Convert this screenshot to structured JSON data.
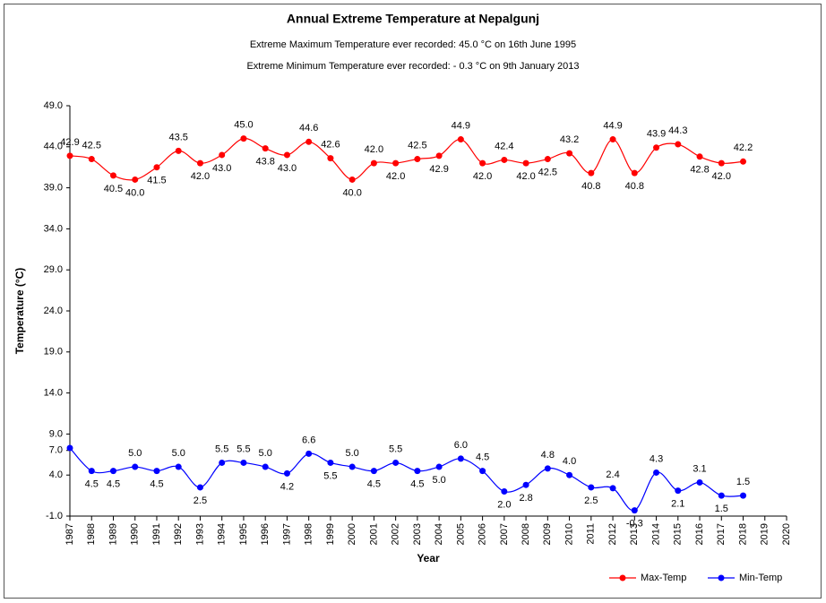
{
  "chart_data": {
    "type": "line",
    "title": "Annual Extreme Temperature at Nepalgunj",
    "subtitles": [
      "Extreme Maximum Temperature  ever recorded: 45.0 °C on 16th June 1995",
      "Extreme Minimum Temperature ever recorded: - 0.3 °C on 9th January 2013"
    ],
    "xlabel": "Year",
    "ylabel": "Temperature (°C)",
    "x": [
      1987,
      1988,
      1989,
      1990,
      1991,
      1992,
      1993,
      1994,
      1995,
      1996,
      1997,
      1998,
      1999,
      2000,
      2001,
      2002,
      2003,
      2004,
      2005,
      2006,
      2007,
      2008,
      2009,
      2010,
      2011,
      2012,
      2013,
      2014,
      2015,
      2016,
      2017,
      2018
    ],
    "xlim": [
      1987,
      2020
    ],
    "xticks": [
      1987,
      1988,
      1989,
      1990,
      1991,
      1992,
      1993,
      1994,
      1995,
      1996,
      1997,
      1998,
      1999,
      2000,
      2001,
      2002,
      2003,
      2004,
      2005,
      2006,
      2007,
      2008,
      2009,
      2010,
      2011,
      2012,
      2013,
      2014,
      2015,
      2016,
      2017,
      2018,
      2019,
      2020
    ],
    "ylim": [
      -1,
      49
    ],
    "yticks": [
      {
        "value": -1,
        "label": "-1.0"
      },
      {
        "value": 4,
        "label": "4.0"
      },
      {
        "value": 7,
        "label": "7.0"
      },
      {
        "value": 9,
        "label": "9.0"
      },
      {
        "value": 14,
        "label": "14.0"
      },
      {
        "value": 19,
        "label": "19.0"
      },
      {
        "value": 24,
        "label": "24.0"
      },
      {
        "value": 29,
        "label": "29.0"
      },
      {
        "value": 34,
        "label": "34.0"
      },
      {
        "value": 39,
        "label": "39.0"
      },
      {
        "value": 44,
        "label": "44.0"
      },
      {
        "value": 49,
        "label": "49.0"
      }
    ],
    "legend": "bottom-right",
    "series": [
      {
        "name": "Max-Temp",
        "color": "#ff0000",
        "values": [
          42.9,
          42.5,
          40.5,
          40.0,
          41.5,
          43.5,
          42.0,
          43.0,
          45.0,
          43.8,
          43.0,
          44.6,
          42.6,
          40.0,
          42.0,
          42.0,
          42.5,
          42.9,
          44.9,
          42.0,
          42.4,
          42.0,
          42.5,
          43.2,
          40.8,
          44.9,
          40.8,
          43.9,
          44.3,
          42.8,
          42.0,
          42.2
        ],
        "value_labels": [
          "42.9",
          "42.5",
          "40.5",
          "40.0",
          "41.5",
          "43.5",
          "42.0",
          "43.0",
          "45.0",
          "43.8",
          "43.0",
          "44.6",
          "42.6",
          "40.0",
          "42.0",
          "42.0",
          "42.5",
          "42.9",
          "44.9",
          "42.0",
          "42.4",
          "42.0",
          "42.5",
          "43.2",
          "40.8",
          "44.9",
          "40.8",
          "43.9",
          "44.3",
          "42.8",
          "42.0",
          "42.2"
        ]
      },
      {
        "name": "Min-Temp",
        "color": "#0000ff",
        "values": [
          7.3,
          4.5,
          4.5,
          5.0,
          4.5,
          5.0,
          2.5,
          5.5,
          5.5,
          5.0,
          4.2,
          6.6,
          5.5,
          5.0,
          4.5,
          5.5,
          4.5,
          5.0,
          6.0,
          4.5,
          2.0,
          2.8,
          4.8,
          4.0,
          2.5,
          2.4,
          -0.3,
          4.3,
          2.1,
          3.1,
          1.5,
          1.5
        ],
        "value_labels": [
          null,
          "4.5",
          "4.5",
          "5.0",
          "4.5",
          "5.0",
          "2.5",
          "5.5",
          "5.5",
          "5.0",
          "4.2",
          "6.6",
          "5.5",
          "5.0",
          "4.5",
          "5.5",
          "4.5",
          "5.0",
          "6.0",
          "4.5",
          "2.0",
          "2.8",
          "4.8",
          "4.0",
          "2.5",
          "2.4",
          "-0.3",
          "4.3",
          "2.1",
          "3.1",
          "1.5",
          "1.5"
        ]
      }
    ]
  }
}
